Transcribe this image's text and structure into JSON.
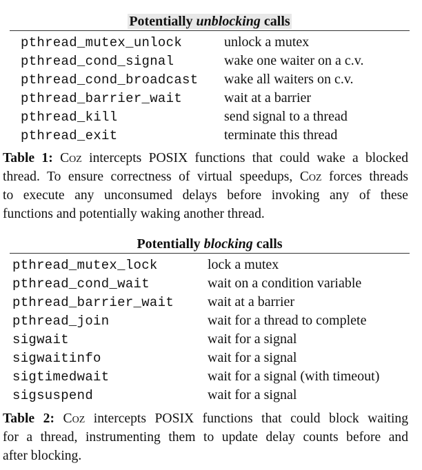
{
  "table1": {
    "title_pre": "Potentially ",
    "title_em": "unblocking",
    "title_post": " calls",
    "rows": [
      {
        "fn": "pthread_mutex_unlock",
        "desc": "unlock a mutex"
      },
      {
        "fn": "pthread_cond_signal",
        "desc": "wake one waiter on a c.v."
      },
      {
        "fn": "pthread_cond_broadcast",
        "desc": "wake all waiters on c.v."
      },
      {
        "fn": "pthread_barrier_wait",
        "desc": "wait at a barrier"
      },
      {
        "fn": "pthread_kill",
        "desc": "send signal to a thread"
      },
      {
        "fn": "pthread_exit",
        "desc": "terminate this thread"
      }
    ],
    "caption": {
      "label": "Table 1:",
      "tool": "Coz",
      "line1_rest": " intercepts POSIX functions that could wake a blocked",
      "line2_a": "thread. To ensure correctness of virtual speedups, ",
      "line2_b": " forces threads",
      "line3": "to execute any unconsumed delays before invoking any of these",
      "line4": "functions and potentially waking another thread."
    }
  },
  "table2": {
    "title_pre": "Potentially ",
    "title_em": "blocking",
    "title_post": " calls",
    "rows": [
      {
        "fn": "pthread_mutex_lock",
        "desc": "lock a mutex"
      },
      {
        "fn": "pthread_cond_wait",
        "desc": "wait on a condition variable"
      },
      {
        "fn": "pthread_barrier_wait",
        "desc": "wait at a barrier"
      },
      {
        "fn": "pthread_join",
        "desc": "wait for a thread to complete"
      },
      {
        "fn": "sigwait",
        "desc": "wait for a signal"
      },
      {
        "fn": "sigwaitinfo",
        "desc": "wait for a signal"
      },
      {
        "fn": "sigtimedwait",
        "desc": "wait for a signal (with timeout)"
      },
      {
        "fn": "sigsuspend",
        "desc": "wait for a signal"
      }
    ],
    "caption": {
      "label": "Table 2:",
      "tool": "Coz",
      "line1_rest": " intercepts POSIX functions that could block waiting",
      "line2": "for a thread, instrumenting them to update delay counts before and",
      "line3": "after blocking."
    }
  }
}
